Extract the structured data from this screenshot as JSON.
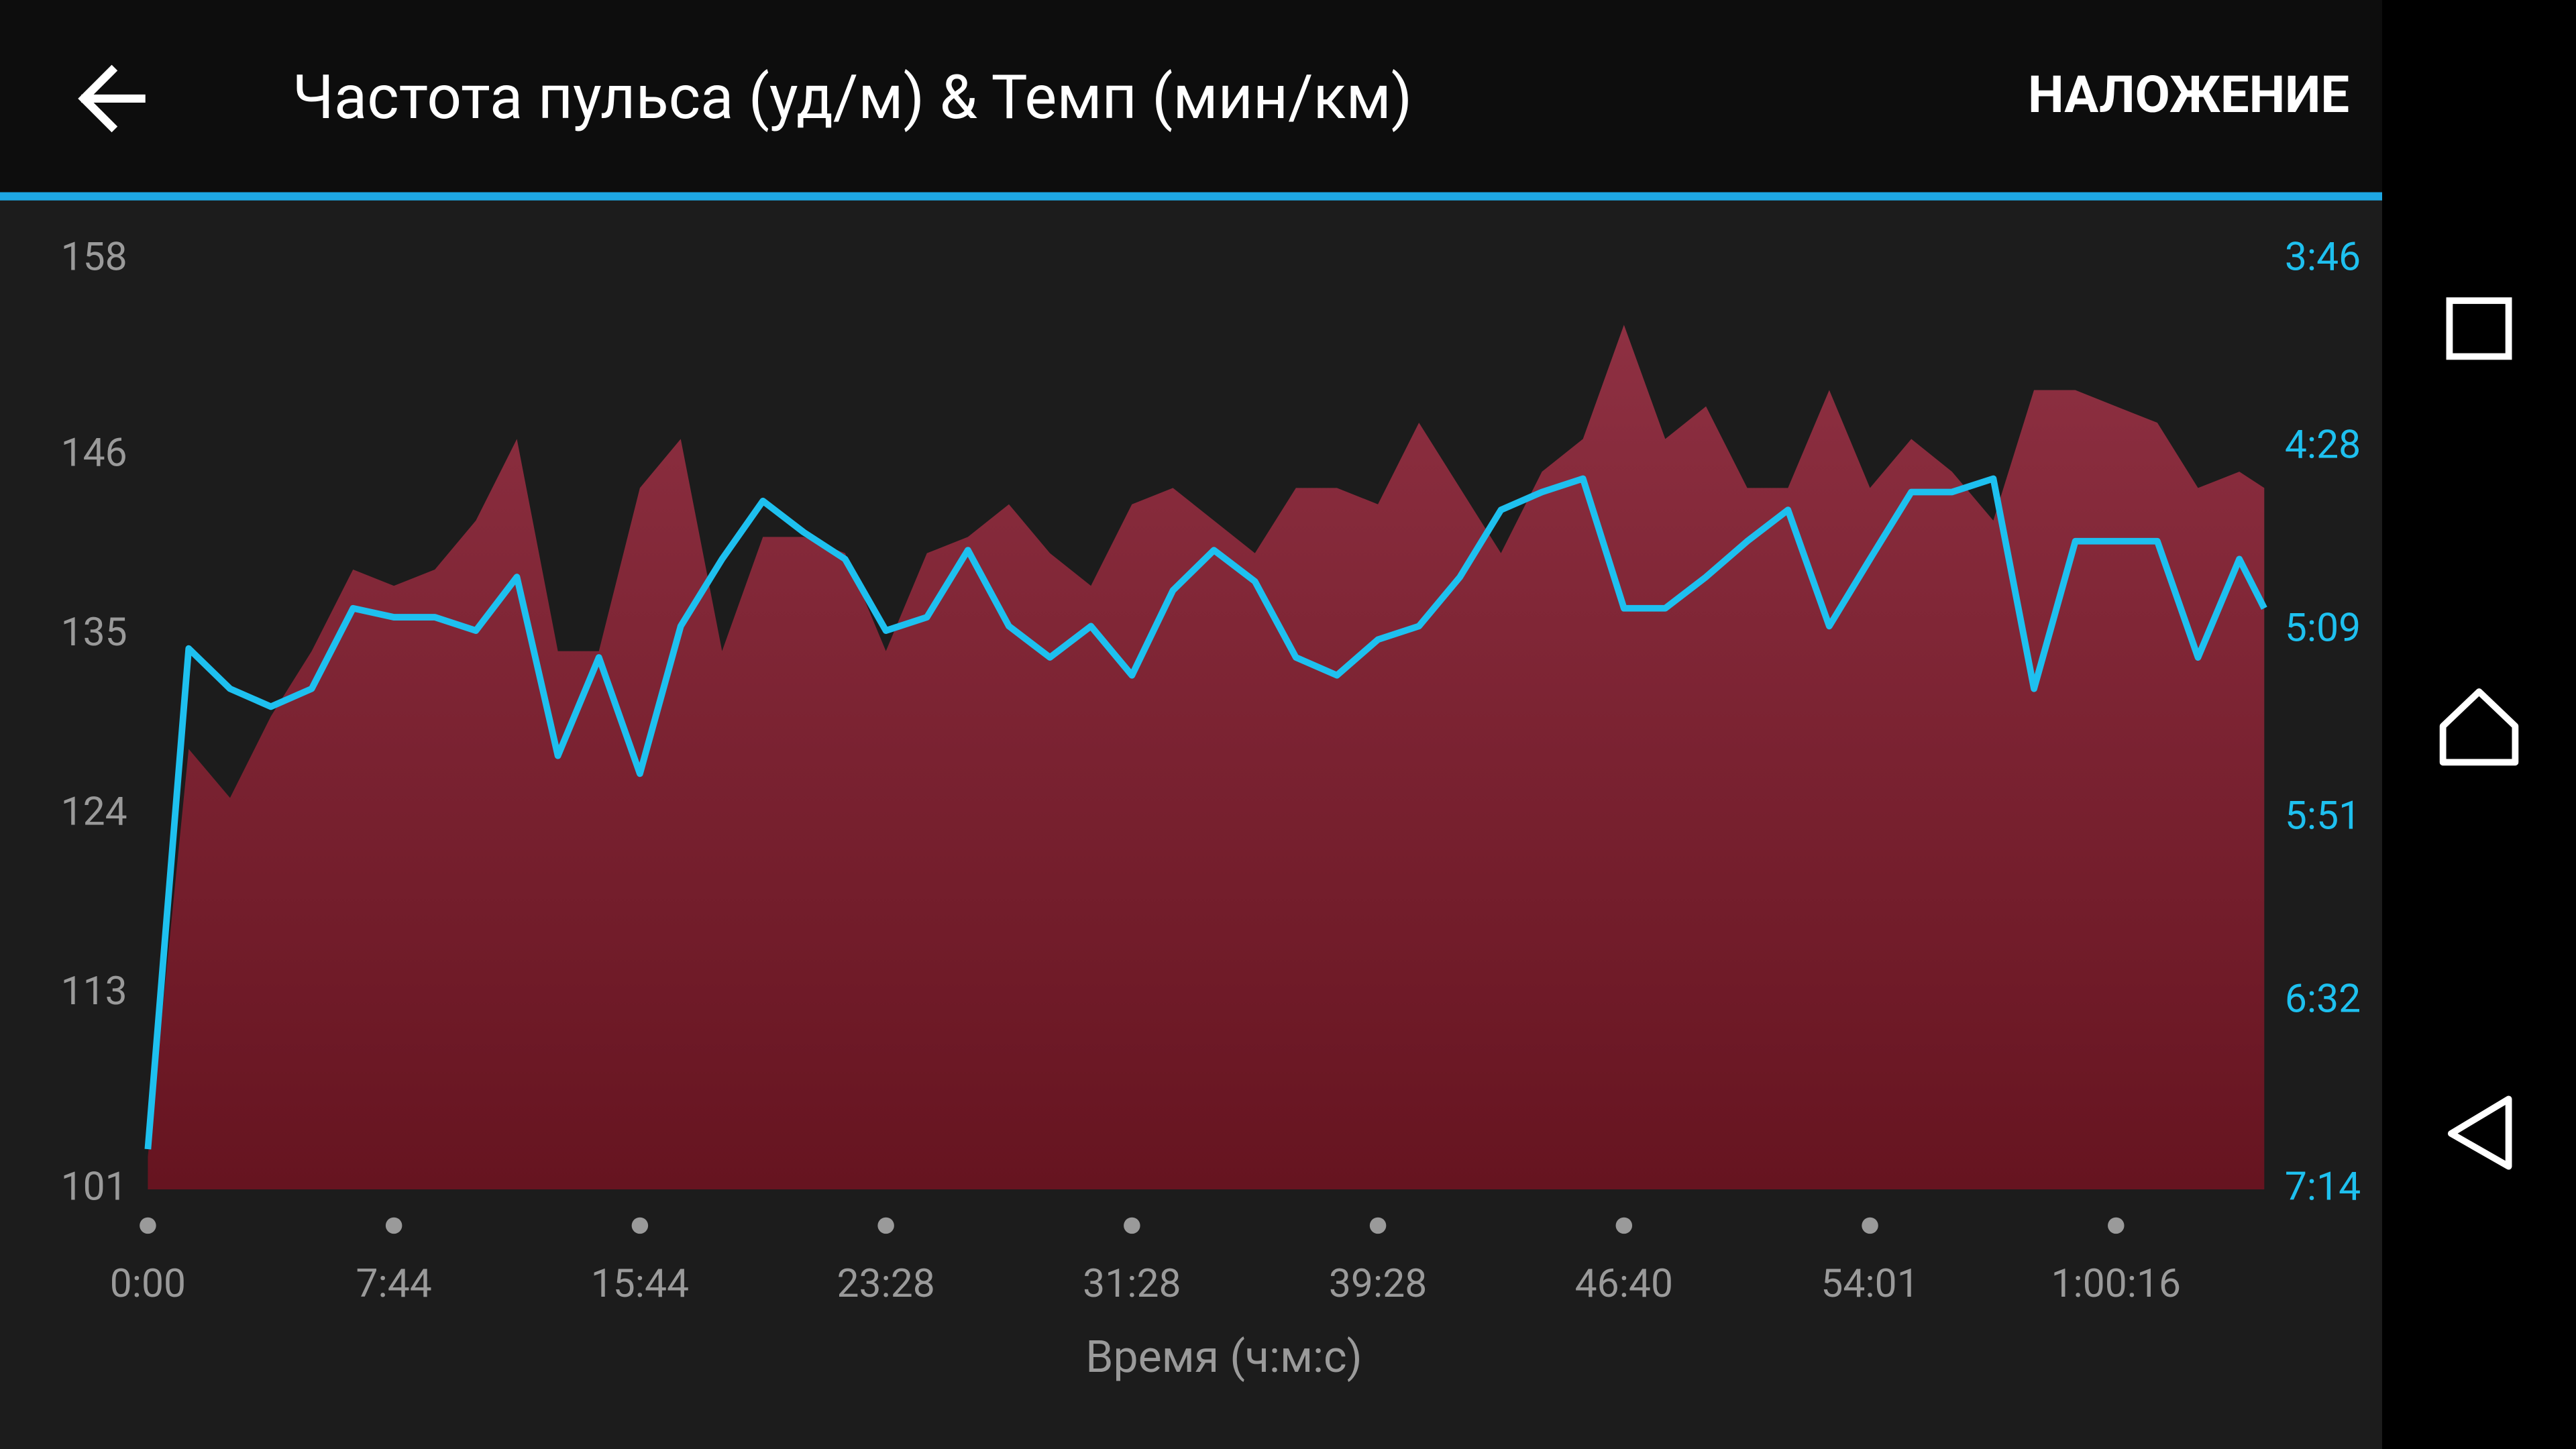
{
  "header": {
    "title": "Частота пульса (уд/м) & Темп (мин/км)",
    "action": "НАЛОЖЕНИЕ"
  },
  "chart_data": {
    "type": "area",
    "xlabel": "Время (ч:м:с)",
    "x": [
      0,
      77,
      155,
      232,
      309,
      387,
      464,
      544,
      624,
      704,
      784,
      864,
      944,
      1021,
      1099,
      1176,
      1253,
      1331,
      1408,
      1488,
      1568,
      1648,
      1728,
      1808,
      1888,
      1968,
      2048,
      2128,
      2208,
      2288,
      2368,
      2440,
      2512,
      2584,
      2656,
      2728,
      2800,
      2874,
      2947,
      3021,
      3094,
      3168,
      3241,
      3304,
      3366,
      3429,
      3491,
      3554,
      3616,
      3679,
      3741,
      3804,
      3842
    ],
    "xlim": [
      0,
      3842
    ],
    "xticks": [
      {
        "value": 0,
        "label": "0:00"
      },
      {
        "value": 464,
        "label": "7:44"
      },
      {
        "value": 944,
        "label": "15:44"
      },
      {
        "value": 1408,
        "label": "23:28"
      },
      {
        "value": 1888,
        "label": "31:28"
      },
      {
        "value": 2368,
        "label": "39:28"
      },
      {
        "value": 2800,
        "label": "46:40"
      },
      {
        "value": 3241,
        "label": "54:01"
      },
      {
        "value": 3616,
        "label": "1:00:16"
      }
    ],
    "ylim": [
      101,
      158
    ],
    "yticks": [
      101,
      113,
      124,
      135,
      146,
      158
    ],
    "y2lim": [
      434,
      226
    ],
    "y2ticks": [
      {
        "value": 434,
        "label": "7:14"
      },
      {
        "value": 392,
        "label": "6:32"
      },
      {
        "value": 351,
        "label": "5:51"
      },
      {
        "value": 309,
        "label": "5:09"
      },
      {
        "value": 268,
        "label": "4:28"
      },
      {
        "value": 226,
        "label": "3:46"
      }
    ],
    "series": [
      {
        "color": "#8a2c3c",
        "values": [
          103,
          128,
          125,
          130,
          134,
          139,
          138,
          139,
          142,
          147,
          134,
          134,
          144,
          147,
          134,
          141,
          141,
          140,
          134,
          140,
          141,
          143,
          140,
          138,
          143,
          144,
          142,
          140,
          144,
          144,
          143,
          148,
          144,
          140,
          145,
          147,
          154,
          147,
          149,
          144,
          144,
          150,
          144,
          147,
          145,
          142,
          150,
          150,
          149,
          148,
          144,
          145,
          144
        ]
      },
      {
        "type": "line",
        "axis": "y2",
        "color": "#1ec0ef",
        "values": [
          425,
          313,
          322,
          326,
          322,
          304,
          306,
          306,
          309,
          297,
          337,
          315,
          341,
          308,
          293,
          280,
          287,
          293,
          309,
          306,
          291,
          308,
          315,
          308,
          319,
          300,
          291,
          298,
          315,
          319,
          311,
          308,
          297,
          282,
          278,
          275,
          304,
          304,
          297,
          289,
          282,
          308,
          293,
          278,
          278,
          275,
          322,
          289,
          289,
          289,
          315,
          293,
          304
        ]
      }
    ]
  }
}
